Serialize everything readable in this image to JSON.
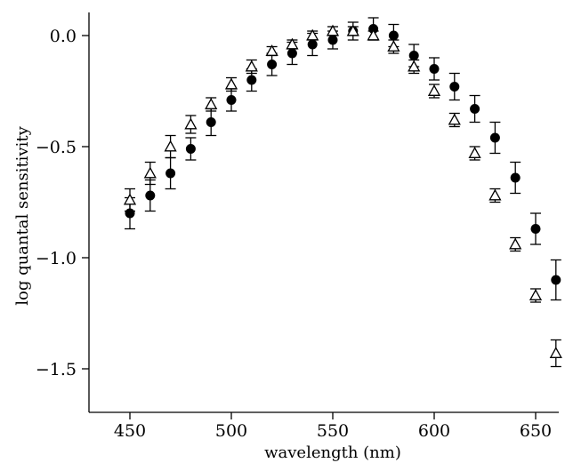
{
  "chart_data": {
    "type": "scatter",
    "xlabel": "wavelength (nm)",
    "ylabel": "log quantal sensitivity",
    "xlim": [
      432,
      665
    ],
    "ylim": [
      -1.7,
      0.12
    ],
    "xticks": [
      450,
      500,
      550,
      600,
      650
    ],
    "yticks": [
      0.0,
      -0.5,
      -1.0,
      -1.5
    ],
    "xtick_labels": [
      "450",
      "500",
      "550",
      "600",
      "650"
    ],
    "ytick_labels": [
      "0.0",
      "−0.5",
      "−1.0",
      "−1.5"
    ],
    "grid": false,
    "legend": "none",
    "series": [
      {
        "marker": "filled-circle",
        "color": "#000000",
        "x": [
          450,
          460,
          470,
          480,
          490,
          500,
          510,
          520,
          530,
          540,
          550,
          560,
          570,
          580,
          590,
          600,
          610,
          620,
          630,
          640,
          650,
          660
        ],
        "y": [
          -0.8,
          -0.72,
          -0.62,
          -0.51,
          -0.39,
          -0.29,
          -0.2,
          -0.13,
          -0.08,
          -0.04,
          -0.02,
          0.02,
          0.03,
          0.0,
          -0.09,
          -0.15,
          -0.23,
          -0.33,
          -0.46,
          -0.64,
          -0.87,
          -1.1
        ],
        "err": [
          0.07,
          0.07,
          0.07,
          0.05,
          0.06,
          0.05,
          0.05,
          0.05,
          0.05,
          0.05,
          0.04,
          0.04,
          0.05,
          0.05,
          0.05,
          0.05,
          0.06,
          0.06,
          0.07,
          0.07,
          0.07,
          0.09
        ]
      },
      {
        "marker": "open-triangle",
        "color": "#000000",
        "x": [
          450,
          460,
          470,
          480,
          490,
          500,
          510,
          520,
          530,
          540,
          550,
          560,
          570,
          580,
          590,
          600,
          610,
          620,
          630,
          640,
          650,
          660
        ],
        "y": [
          -0.74,
          -0.62,
          -0.5,
          -0.4,
          -0.31,
          -0.22,
          -0.14,
          -0.07,
          -0.04,
          0.0,
          0.02,
          0.02,
          0.0,
          -0.05,
          -0.14,
          -0.25,
          -0.38,
          -0.53,
          -0.72,
          -0.94,
          -1.17,
          -1.43
        ],
        "err": [
          0.05,
          0.05,
          0.05,
          0.04,
          0.03,
          0.03,
          0.03,
          0.02,
          0.02,
          0.02,
          0.02,
          0.02,
          0.02,
          0.03,
          0.03,
          0.03,
          0.03,
          0.03,
          0.03,
          0.03,
          0.03,
          0.06
        ]
      }
    ]
  }
}
